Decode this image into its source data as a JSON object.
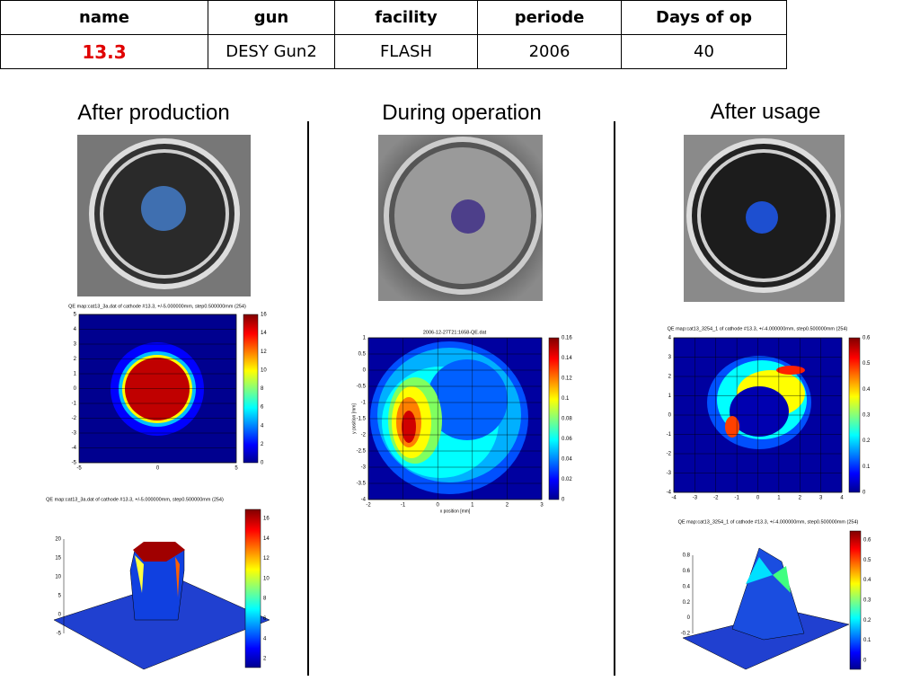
{
  "table": {
    "headers": [
      "name",
      "gun",
      "facility",
      "periode",
      "Days of op"
    ],
    "rows": [
      [
        "13.3",
        "DESY Gun2",
        "FLASH",
        "2006",
        "40"
      ]
    ]
  },
  "columns": [
    "After production",
    "During operation",
    "After usage"
  ],
  "maps": [
    {
      "title": "QE map:cat13_3a.dat of cathode #13.3, +/-5.000000mm, step0.500000mm (254)",
      "xticks": [
        "-5",
        "0",
        "5"
      ],
      "yticks": [
        "5",
        "4",
        "3",
        "2",
        "1",
        "0",
        "-1",
        "-2",
        "-3",
        "-4",
        "-5"
      ],
      "cbticks": [
        "16",
        "14",
        "12",
        "10",
        "8",
        "6",
        "4",
        "2",
        "0"
      ]
    },
    {
      "title": "2006-12-27T21:1658-QE.dat",
      "xlabel": "x position [mm]",
      "ylabel": "y position [mm]",
      "xticks": [
        "-2",
        "-1",
        "0",
        "1",
        "2",
        "3"
      ],
      "yticks": [
        "1",
        "0.5",
        "0",
        "-0.5",
        "-1",
        "-1.5",
        "-2",
        "-2.5",
        "-3",
        "-3.5",
        "-4"
      ],
      "cbticks": [
        "0.16",
        "0.14",
        "0.12",
        "0.1",
        "0.08",
        "0.06",
        "0.04",
        "0.02",
        "0"
      ]
    },
    {
      "title": "QE map:cat13_3254_1 of cathode #13.3, +/-4.000000mm, step0.500000mm (254)",
      "xticks": [
        "-4",
        "-3",
        "-2",
        "-1",
        "0",
        "1",
        "2",
        "3",
        "4"
      ],
      "yticks": [
        "4",
        "3",
        "2",
        "1",
        "0",
        "-1",
        "-2",
        "-3",
        "-4"
      ],
      "cbticks": [
        "0.6",
        "0.5",
        "0.4",
        "0.3",
        "0.2",
        "0.1",
        "0"
      ]
    }
  ],
  "surfaces": [
    {
      "title": "QE map:cat13_3a.dat of cathode #13.3, +/-5.000000mm, step0.500000mm (254)",
      "zticks": [
        "20",
        "15",
        "10",
        "5",
        "0",
        "-5"
      ],
      "cbticks": [
        "16",
        "14",
        "12",
        "10",
        "8",
        "6",
        "4",
        "2"
      ]
    },
    {
      "title": "QE map:cat13_3254_1 of cathode #13.3, +/-4.000000mm, step0.500000mm (254)",
      "zticks": [
        "0.8",
        "0.6",
        "0.4",
        "0.2",
        "0",
        "-0.2"
      ],
      "cbticks": [
        "0.6",
        "0.5",
        "0.4",
        "0.3",
        "0.2",
        "0.1",
        "0"
      ]
    }
  ]
}
